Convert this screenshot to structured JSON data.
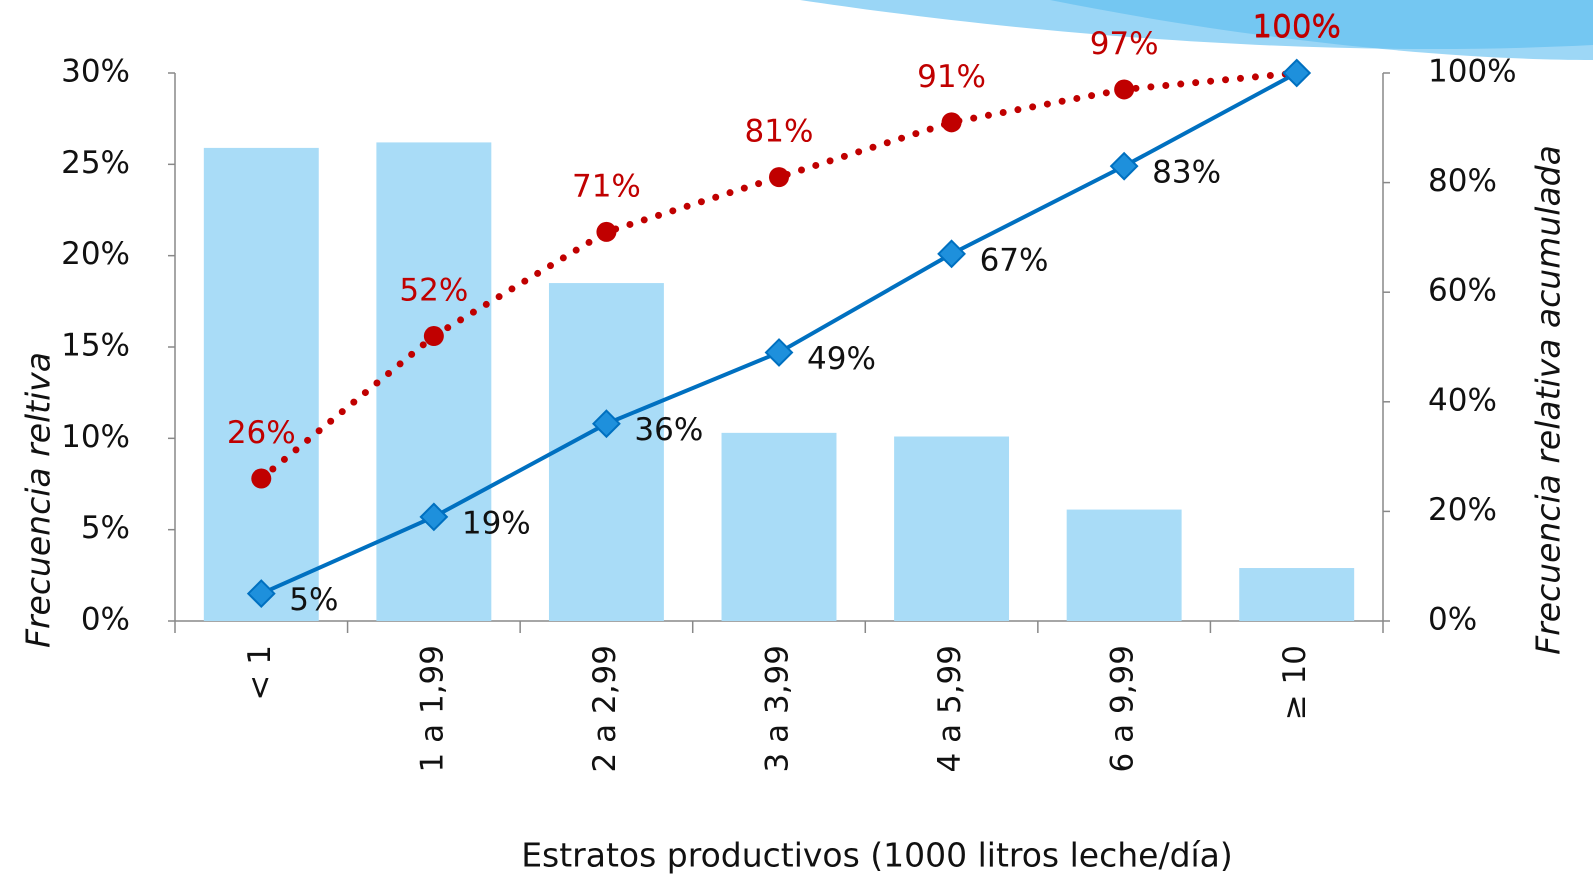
{
  "chart_data": {
    "type": "combo",
    "x_label": "Estratos productivos (1000 litros leche/día)",
    "y_label": "Frecuencia reltiva",
    "y2_label": "Frecuencia relativa acumulada",
    "categories": [
      "< 1",
      "1 a 1,99",
      "2 a 2,99",
      "3 a 3,99",
      "4 a 5,99",
      "6 a 9,99",
      "≥ 10"
    ],
    "series": [
      {
        "type": "bar",
        "color": "#a9dcf7",
        "values": [
          25.9,
          26.2,
          18.5,
          10.3,
          10.1,
          6.1,
          2.9
        ]
      },
      {
        "type": "line",
        "axis": "y2",
        "color": "#c00000",
        "marker": "circle",
        "dash": "dotted",
        "values": [
          26,
          52,
          71,
          81,
          91,
          97,
          100
        ],
        "value_labels": [
          "26%",
          "52%",
          "71%",
          "81%",
          "91%",
          "97%",
          "100%"
        ]
      },
      {
        "type": "line",
        "axis": "y2",
        "color": "#0070c0",
        "marker": "diamond",
        "dash": "solid",
        "values": [
          5,
          19,
          36,
          49,
          67,
          83,
          100
        ],
        "value_labels": [
          "5%",
          "19%",
          "36%",
          "49%",
          "67%",
          "83%",
          "100%"
        ]
      }
    ],
    "ylim": [
      0,
      30
    ],
    "yticks": [
      {
        "value": 0,
        "label": "0%"
      },
      {
        "value": 5,
        "label": "5%"
      },
      {
        "value": 10,
        "label": "10%"
      },
      {
        "value": 15,
        "label": "15%"
      },
      {
        "value": 20,
        "label": "20%"
      },
      {
        "value": 25,
        "label": "25%"
      },
      {
        "value": 30,
        "label": "30%"
      }
    ],
    "y2lim": [
      0,
      100
    ],
    "y2ticks": [
      {
        "value": 0,
        "label": "0%"
      },
      {
        "value": 20,
        "label": "20%"
      },
      {
        "value": 40,
        "label": "40%"
      },
      {
        "value": 60,
        "label": "60%"
      },
      {
        "value": 80,
        "label": "80%"
      },
      {
        "value": 100,
        "label": "100%"
      }
    ]
  }
}
